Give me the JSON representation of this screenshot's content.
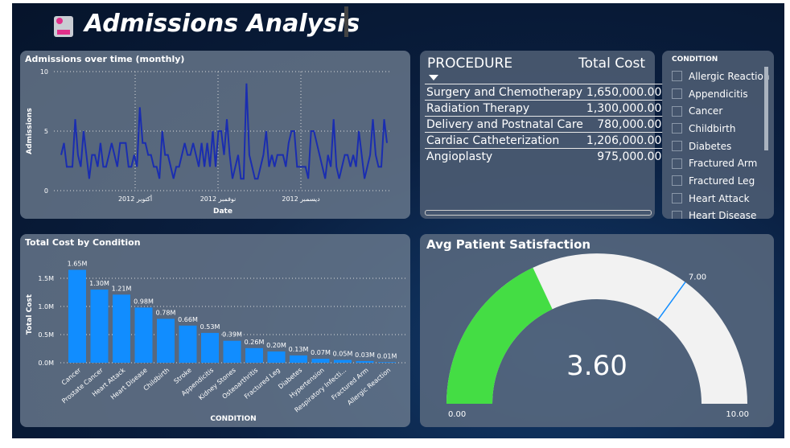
{
  "header": {
    "title": "Admissions Analysis",
    "icon": "hospital-icon"
  },
  "line_panel": {
    "title": "Admissions over time (monthly)"
  },
  "bar_panel": {
    "title": "Total Cost by Condition"
  },
  "procedure_table": {
    "headers": [
      "PROCEDURE",
      "Total Cost"
    ],
    "rows": [
      [
        "Surgery and Chemotherapy",
        "1,650,000.00"
      ],
      [
        "Radiation Therapy",
        "1,300,000.00"
      ],
      [
        "Delivery and Postnatal Care",
        "780,000.00"
      ],
      [
        "Cardiac Catheterization",
        "1,206,000.00"
      ],
      [
        "Angioplasty",
        "975,000.00"
      ]
    ]
  },
  "slicer": {
    "title": "CONDITION",
    "items": [
      "Allergic Reaction",
      "Appendicitis",
      "Cancer",
      "Childbirth",
      "Diabetes",
      "Fractured Arm",
      "Fractured Leg",
      "Heart Attack",
      "Heart Disease"
    ]
  },
  "gauge": {
    "title": "Avg Patient Satisfaction",
    "value": 3.6,
    "value_label": "3.60",
    "min": 0,
    "max": 10,
    "min_label": "0.00",
    "max_label": "10.00",
    "target": 7,
    "target_label": "7.00",
    "fill_color": "#44dd44",
    "track_color": "#f2f2f2"
  },
  "chart_data": [
    {
      "type": "line",
      "title": "Admissions over time (monthly)",
      "xlabel": "Date",
      "ylabel": "Admissions",
      "ylim": [
        0,
        10
      ],
      "yticks": [
        "0",
        "5",
        "10"
      ],
      "xticks": [
        "أكتوبر 2012",
        "نوفمبر 2012",
        "ديسمبر 2012"
      ],
      "color": "#1a2db0",
      "values": [
        3,
        4,
        2,
        2,
        2,
        6,
        3,
        2,
        5,
        3,
        1,
        3,
        3,
        2,
        4,
        2,
        2,
        3,
        4,
        3,
        2,
        4,
        4,
        4,
        2,
        2,
        3,
        2,
        7,
        4,
        4,
        3,
        3,
        2,
        2,
        1,
        5,
        3,
        3,
        2,
        1,
        2,
        2,
        3,
        4,
        3,
        3,
        4,
        3,
        2,
        4,
        2,
        4,
        2,
        5,
        2,
        5,
        5,
        3,
        6,
        3,
        1,
        2,
        3,
        1,
        1,
        9,
        3,
        2,
        1,
        1,
        2,
        3,
        5,
        2,
        3,
        2,
        3,
        3,
        3,
        2,
        4,
        5,
        5,
        2,
        2,
        2,
        2,
        1,
        5,
        5,
        4,
        3,
        2,
        1,
        3,
        2,
        6,
        2,
        1,
        2,
        3,
        3,
        2,
        3,
        2,
        5,
        3,
        1,
        2,
        3,
        6,
        3,
        2,
        2,
        6,
        4
      ]
    },
    {
      "type": "bar",
      "title": "Total Cost by Condition",
      "xlabel": "CONDITION",
      "ylabel": "Total Cost",
      "ylim": [
        0,
        1.8
      ],
      "yticks": [
        "0.0M",
        "0.5M",
        "1.0M",
        "1.5M"
      ],
      "color": "#118dff",
      "categories": [
        "Cancer",
        "Prostate Cancer",
        "Heart Attack",
        "Heart Disease",
        "Childbirth",
        "Stroke",
        "Appendicitis",
        "Kidney Stones",
        "Osteoarthritis",
        "Fractured Leg",
        "Diabetes",
        "Hypertension",
        "Respiratory Infecti...",
        "Fractured Arm",
        "Allergic Reaction"
      ],
      "values": [
        1.65,
        1.3,
        1.21,
        0.98,
        0.78,
        0.66,
        0.53,
        0.39,
        0.26,
        0.2,
        0.13,
        0.07,
        0.05,
        0.03,
        0.01
      ],
      "labels": [
        "1.65M",
        "1.30M",
        "1.21M",
        "0.98M",
        "0.78M",
        "0.66M",
        "0.53M",
        "0.39M",
        "0.26M",
        "0.20M",
        "0.13M",
        "0.07M",
        "0.05M",
        "0.03M",
        "0.01M"
      ]
    }
  ]
}
